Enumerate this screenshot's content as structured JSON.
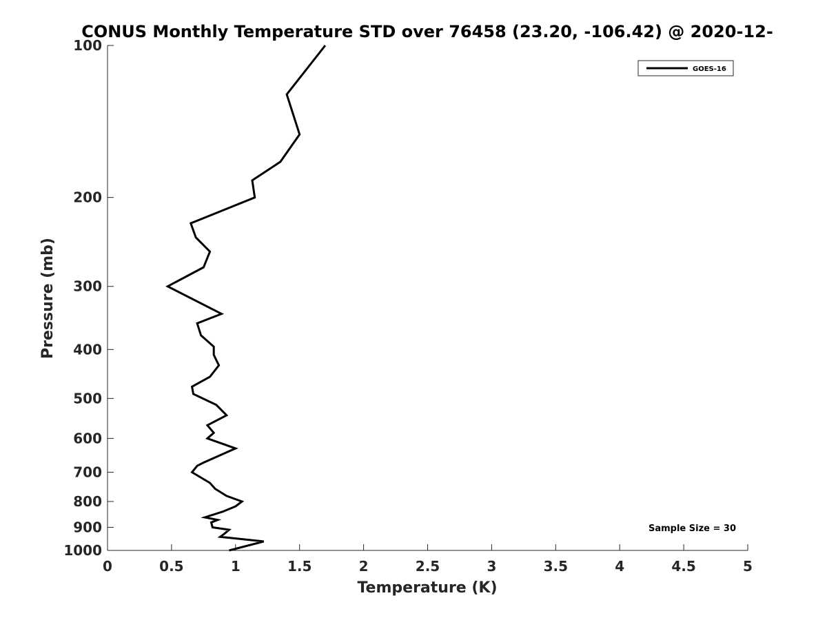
{
  "chart_data": {
    "type": "line",
    "title": "CONUS Monthly Temperature STD over 76458 (23.20, -106.42) @ 2020-12-",
    "xlabel": "Temperature (K)",
    "ylabel": "Pressure (mb)",
    "xlim": [
      0,
      5
    ],
    "ylim": [
      100,
      1000
    ],
    "y_scale": "log",
    "y_reversed": true,
    "x_ticks": [
      0,
      0.5,
      1,
      1.5,
      2,
      2.5,
      3,
      3.5,
      4,
      4.5,
      5
    ],
    "x_tick_labels": [
      "0",
      "0.5",
      "1",
      "1.5",
      "2",
      "2.5",
      "3",
      "3.5",
      "4",
      "4.5",
      "5"
    ],
    "y_ticks": [
      100,
      200,
      300,
      400,
      500,
      600,
      700,
      800,
      900,
      1000
    ],
    "y_tick_labels": [
      "100",
      "200",
      "300",
      "400",
      "500",
      "600",
      "700",
      "800",
      "900",
      "1000"
    ],
    "grid": false,
    "legend_position": "top-right",
    "annotation": "Sample Size = 30",
    "series": [
      {
        "name": "GOES-16",
        "color": "#000000",
        "points": [
          [
            1.7,
            100
          ],
          [
            1.4,
            125
          ],
          [
            1.5,
            150
          ],
          [
            1.35,
            170
          ],
          [
            1.13,
            185
          ],
          [
            1.15,
            200
          ],
          [
            0.65,
            225
          ],
          [
            0.69,
            240
          ],
          [
            0.8,
            256
          ],
          [
            0.75,
            275
          ],
          [
            0.47,
            300
          ],
          [
            0.89,
            340
          ],
          [
            0.7,
            355
          ],
          [
            0.73,
            375
          ],
          [
            0.83,
            395
          ],
          [
            0.83,
            410
          ],
          [
            0.87,
            430
          ],
          [
            0.8,
            453
          ],
          [
            0.66,
            474
          ],
          [
            0.67,
            490
          ],
          [
            0.85,
            515
          ],
          [
            0.93,
            540
          ],
          [
            0.78,
            565
          ],
          [
            0.83,
            585
          ],
          [
            0.78,
            600
          ],
          [
            1.0,
            628
          ],
          [
            0.75,
            670
          ],
          [
            0.7,
            680
          ],
          [
            0.66,
            700
          ],
          [
            0.8,
            735
          ],
          [
            0.84,
            755
          ],
          [
            0.93,
            780
          ],
          [
            1.05,
            800
          ],
          [
            1.0,
            818
          ],
          [
            0.9,
            838
          ],
          [
            0.76,
            860
          ],
          [
            0.86,
            870
          ],
          [
            0.81,
            880
          ],
          [
            0.82,
            900
          ],
          [
            0.95,
            910
          ],
          [
            0.91,
            928
          ],
          [
            0.88,
            940
          ],
          [
            1.22,
            960
          ],
          [
            0.95,
            1000
          ]
        ]
      }
    ]
  }
}
